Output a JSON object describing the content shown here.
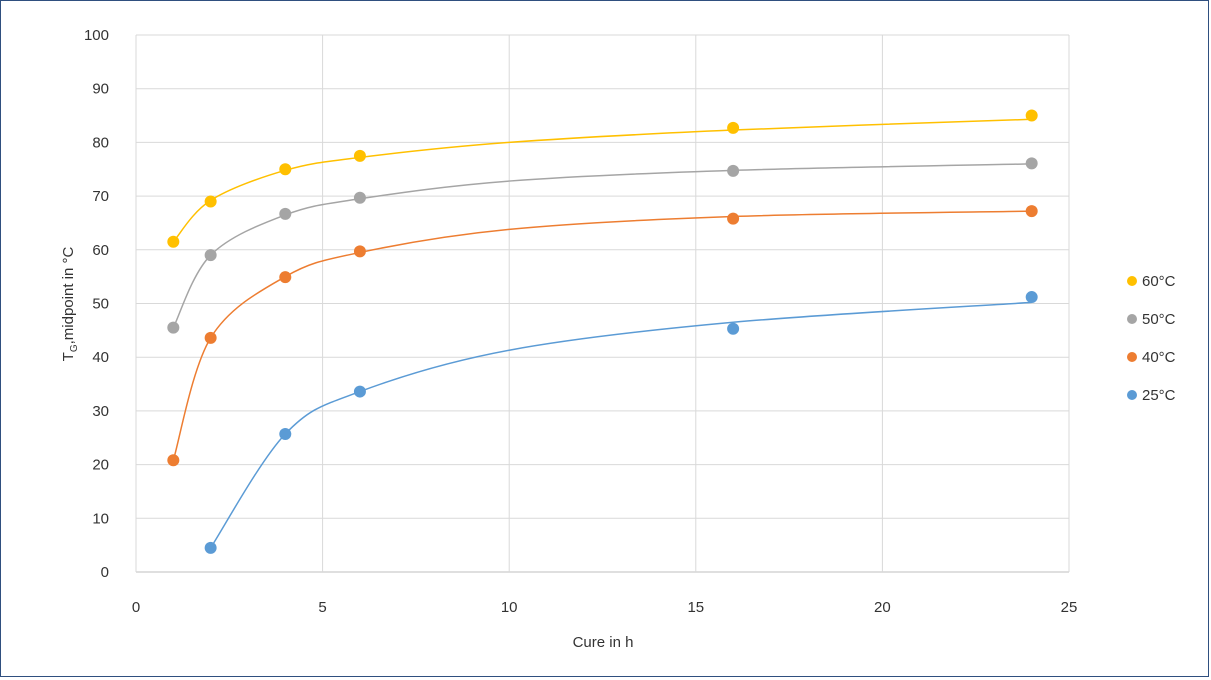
{
  "chart_data": {
    "type": "scatter",
    "title": "",
    "xlabel": "Cure in h",
    "ylabel": {
      "main": "T",
      "sub": "G",
      "rest": ",midpoint in °C"
    },
    "xlim": [
      0,
      25
    ],
    "ylim": [
      0,
      100
    ],
    "x_ticks": [
      "0",
      "5",
      "10",
      "15",
      "20",
      "25"
    ],
    "y_ticks": [
      "0",
      "10",
      "20",
      "30",
      "40",
      "50",
      "60",
      "70",
      "80",
      "90",
      "100"
    ],
    "grid": true,
    "legend_position": "right",
    "series": [
      {
        "name": "60°C",
        "color": "#FFC000",
        "x": [
          1,
          2,
          4,
          6,
          16,
          24
        ],
        "y": [
          61.5,
          69,
          75,
          77.5,
          82.7,
          85
        ],
        "trend": [
          [
            1,
            61.5
          ],
          [
            2,
            69.2
          ],
          [
            4,
            74.8
          ],
          [
            6,
            77.2
          ],
          [
            10,
            80
          ],
          [
            16,
            82.3
          ],
          [
            24,
            84.3
          ]
        ]
      },
      {
        "name": "50°C",
        "color": "#A5A5A5",
        "x": [
          1,
          2,
          4,
          6,
          16,
          24
        ],
        "y": [
          45.5,
          59,
          66.7,
          69.7,
          74.7,
          76.1
        ],
        "trend": [
          [
            1,
            45.5
          ],
          [
            2,
            59
          ],
          [
            4,
            66.5
          ],
          [
            6,
            69.5
          ],
          [
            10,
            72.8
          ],
          [
            16,
            74.8
          ],
          [
            24,
            76
          ]
        ]
      },
      {
        "name": "40°C",
        "color": "#ED7D31",
        "x": [
          1,
          2,
          4,
          6,
          16,
          24
        ],
        "y": [
          20.8,
          43.6,
          54.9,
          59.7,
          65.8,
          67.2
        ],
        "trend": [
          [
            1,
            20.8
          ],
          [
            2,
            43.6
          ],
          [
            4,
            55
          ],
          [
            6,
            59.5
          ],
          [
            10,
            63.8
          ],
          [
            16,
            66.2
          ],
          [
            24,
            67.2
          ]
        ]
      },
      {
        "name": "25°C",
        "color": "#5B9BD5",
        "x": [
          2,
          4,
          6,
          16,
          24
        ],
        "y": [
          4.5,
          25.7,
          33.6,
          45.3,
          51.2
        ],
        "trend": [
          [
            2,
            4.5
          ],
          [
            4,
            25.7
          ],
          [
            6,
            33.6
          ],
          [
            10,
            41.3
          ],
          [
            16,
            46.5
          ],
          [
            24,
            50.2
          ]
        ]
      }
    ]
  }
}
